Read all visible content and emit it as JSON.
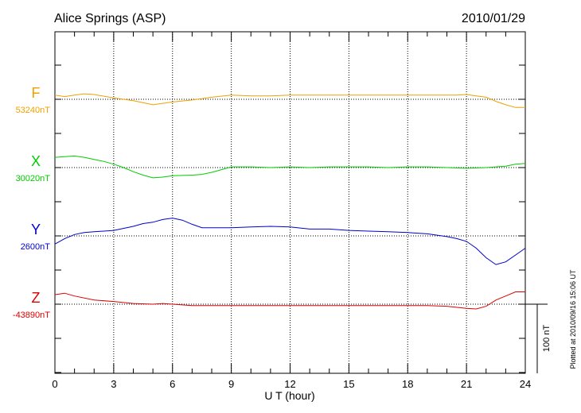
{
  "header": {
    "station": "Alice Springs (ASP)",
    "date": "2010/01/29"
  },
  "footer": {
    "plotted_note": "Plotted at 2010/09/16 15:06 UT",
    "scale_label": "100 nT"
  },
  "chart_data": {
    "type": "line",
    "title": "Alice Springs (ASP)",
    "xlabel": "U T (hour)",
    "ylabel": "",
    "xlim": [
      0,
      24
    ],
    "x_ticks": [
      "0",
      "3",
      "6",
      "9",
      "12",
      "15",
      "18",
      "21",
      "24"
    ],
    "grid": true,
    "scale_bar_nT": 100,
    "series": [
      {
        "name": "F",
        "baseline_label": "53240nT",
        "baseline_nT": 53240,
        "color": "#f0a000",
        "x": [
          0,
          0.5,
          1,
          1.5,
          2,
          3,
          4,
          5,
          6,
          7,
          8,
          9,
          10,
          11,
          12,
          13,
          14,
          15,
          16,
          17,
          18,
          19,
          20,
          20.5,
          21,
          21.5,
          22,
          22.5,
          23,
          23.5,
          24
        ],
        "y": [
          6,
          4,
          6,
          8,
          7,
          2,
          -2,
          -8,
          -4,
          -1,
          3,
          6,
          5,
          5,
          6,
          6,
          6,
          6,
          6,
          6,
          6,
          6,
          6,
          6,
          7,
          5,
          3,
          -3,
          -8,
          -12,
          -12
        ]
      },
      {
        "name": "X",
        "baseline_label": "30020nT",
        "baseline_nT": 30020,
        "color": "#00cc00",
        "x": [
          0,
          0.5,
          1,
          1.5,
          2,
          2.5,
          3,
          3.5,
          4,
          4.5,
          5,
          5.5,
          6,
          7,
          7.5,
          8,
          8.5,
          9,
          10,
          11,
          12,
          13,
          14,
          15,
          16,
          17,
          18,
          19,
          20,
          21,
          22,
          23,
          23.5,
          24
        ],
        "y": [
          15,
          16,
          17,
          15,
          12,
          9,
          5,
          0,
          -6,
          -11,
          -15,
          -14,
          -12,
          -11,
          -10,
          -7,
          -3,
          1,
          1,
          0,
          1,
          0,
          1,
          1,
          1,
          0,
          1,
          1,
          0,
          -1,
          0,
          2,
          5,
          6
        ]
      },
      {
        "name": "Y",
        "baseline_label": "2600nT",
        "baseline_nT": 2600,
        "color": "#0000cc",
        "x": [
          0,
          0.5,
          1,
          1.5,
          2,
          3,
          4,
          4.5,
          5,
          5.5,
          6,
          6.5,
          7,
          7.5,
          8,
          9,
          10,
          11,
          12,
          13,
          14,
          15,
          16,
          17,
          18,
          18.5,
          19,
          19.5,
          20,
          20.5,
          21,
          21.5,
          22,
          22.5,
          23,
          23.5,
          24
        ],
        "y": [
          -12,
          -4,
          2,
          5,
          6,
          8,
          14,
          18,
          20,
          24,
          26,
          23,
          17,
          12,
          12,
          12,
          13,
          14,
          13,
          10,
          10,
          8,
          7,
          6,
          5,
          4,
          3,
          1,
          -1,
          -4,
          -8,
          -18,
          -32,
          -42,
          -38,
          -28,
          -18
        ]
      },
      {
        "name": "Z",
        "baseline_label": "-43890nT",
        "baseline_nT": -43890,
        "color": "#dd0000",
        "x": [
          0,
          0.5,
          1,
          2,
          3,
          4,
          5,
          5.5,
          6,
          7,
          8,
          9,
          10,
          11,
          12,
          13,
          14,
          15,
          16,
          17,
          18,
          19,
          20,
          21,
          21.5,
          22,
          22.5,
          23,
          23.5,
          24
        ],
        "y": [
          14,
          16,
          12,
          6,
          4,
          1,
          0,
          1,
          0,
          -2,
          -2,
          -2,
          -2,
          -2,
          -2,
          -2,
          -2,
          -2,
          -2,
          -2,
          -2,
          -2,
          -3,
          -6,
          -7,
          -3,
          6,
          12,
          18,
          18
        ]
      }
    ]
  }
}
